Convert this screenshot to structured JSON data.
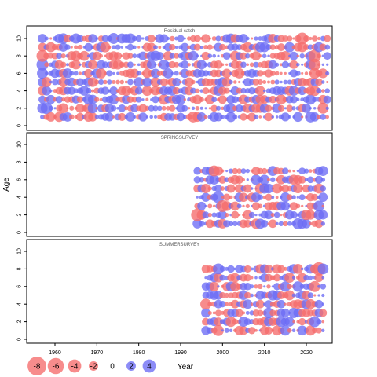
{
  "chart_data": {
    "type": "scatter",
    "ylabel": "Age",
    "xlabel": "Year",
    "x_ticks": [
      1960,
      1970,
      1980,
      1990,
      2000,
      2010,
      2020
    ],
    "y_ticks": [
      0,
      2,
      4,
      6,
      8,
      10
    ],
    "xlim": [
      1952,
      2027
    ],
    "ylim": [
      -0.5,
      11
    ],
    "colors": {
      "positive": "#6b6bf5",
      "negative": "#f56b6b"
    },
    "legend": {
      "placement": "bottom",
      "entries": [
        {
          "label": "-8",
          "value": -8
        },
        {
          "label": "-6",
          "value": -6
        },
        {
          "label": "-4",
          "value": -4
        },
        {
          "label": "-2",
          "value": -2
        },
        {
          "label": "0",
          "value": 0
        },
        {
          "label": "2",
          "value": 2
        },
        {
          "label": "4",
          "value": 4
        }
      ]
    },
    "panels": [
      {
        "title": "Residual catch",
        "years": [
          1957,
          2025
        ],
        "ages": [
          1,
          10
        ],
        "emphasis": [
          {
            "year": 1957,
            "age": 8,
            "value": -3.5
          },
          {
            "year": 1957,
            "age": 7,
            "value": 3.5
          },
          {
            "year": 1957,
            "age": 6,
            "value": 3
          },
          {
            "year": 1958,
            "age": 5,
            "value": -2.5
          },
          {
            "year": 1958,
            "age": 2,
            "value": 3.5
          },
          {
            "year": 1974,
            "age": 10,
            "value": 3
          },
          {
            "year": 1993,
            "age": 1,
            "value": -3
          },
          {
            "year": 2019,
            "age": 10,
            "value": -3.5
          },
          {
            "year": 2022,
            "age": 8,
            "value": -4
          },
          {
            "year": 2022,
            "age": 7,
            "value": -3.5
          },
          {
            "year": 2022,
            "age": 6,
            "value": -3
          },
          {
            "year": 2024,
            "age": 2,
            "value": -3
          },
          {
            "year": 2021,
            "age": 1,
            "value": 3
          }
        ]
      },
      {
        "title": "SPRINGSURVEY",
        "years": [
          1994,
          2024
        ],
        "ages": [
          1,
          7
        ],
        "emphasis": [
          {
            "year": 1994,
            "age": 2,
            "value": -4
          },
          {
            "year": 1998,
            "age": 7,
            "value": -3
          },
          {
            "year": 1999,
            "age": 4,
            "value": 3.5
          },
          {
            "year": 2000,
            "age": 3,
            "value": -3.5
          },
          {
            "year": 2012,
            "age": 7,
            "value": 2.5
          },
          {
            "year": 2018,
            "age": 1,
            "value": 3
          },
          {
            "year": 2023,
            "age": 3,
            "value": 3
          }
        ]
      },
      {
        "title": "SUMMERSURVEY",
        "years": [
          1996,
          2024
        ],
        "ages": [
          1,
          8
        ],
        "emphasis": [
          {
            "year": 1996,
            "age": 4,
            "value": -3
          },
          {
            "year": 1999,
            "age": 8,
            "value": 3
          },
          {
            "year": 1999,
            "age": 1,
            "value": -3
          },
          {
            "year": 2023,
            "age": 8,
            "value": -4.5
          },
          {
            "year": 2024,
            "age": 8,
            "value": 3
          },
          {
            "year": 2022,
            "age": 6,
            "value": -3
          },
          {
            "year": 2022,
            "age": 2,
            "value": 3
          }
        ]
      }
    ]
  }
}
